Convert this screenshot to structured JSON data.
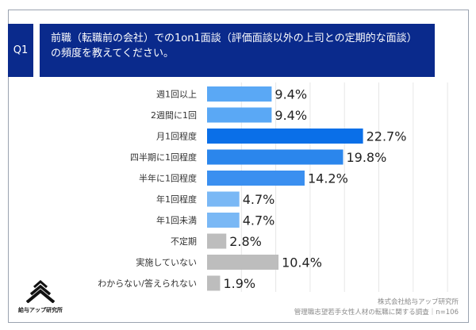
{
  "header": {
    "q_label": "Q1",
    "title": "前職（転職前の会社）での1on1面談（評価面談以外の上司との定期的な面談）の頻度を教えてください。"
  },
  "chart_data": {
    "type": "bar",
    "orientation": "horizontal",
    "categories": [
      "週1回以上",
      "2週間に1回",
      "月1回程度",
      "四半期に1回程度",
      "半年に1回程度",
      "年1回程度",
      "年1回未満",
      "不定期",
      "実施していない",
      "わからない/答えられない"
    ],
    "values": [
      9.4,
      9.4,
      22.7,
      19.8,
      14.2,
      4.7,
      4.7,
      2.8,
      10.4,
      1.9
    ],
    "labels": [
      "9.4%",
      "9.4%",
      "22.7%",
      "19.8%",
      "14.2%",
      "4.7%",
      "4.7%",
      "2.8%",
      "10.4%",
      "1.9%"
    ],
    "colors": [
      "#5aa8f5",
      "#5aa8f5",
      "#0a6fe8",
      "#2b86ec",
      "#3a8ff0",
      "#7ab8f5",
      "#7ab8f5",
      "#bdbdbd",
      "#bdbdbd",
      "#bdbdbd"
    ],
    "xlim": [
      0,
      35
    ],
    "grid": true,
    "grid_step": 5
  },
  "footer": {
    "company": "株式会社給与アップ研究所",
    "survey": "管理職志望若手女性人材の転職に関する調査｜n=106",
    "logo_text": "給与アップ研究所"
  }
}
